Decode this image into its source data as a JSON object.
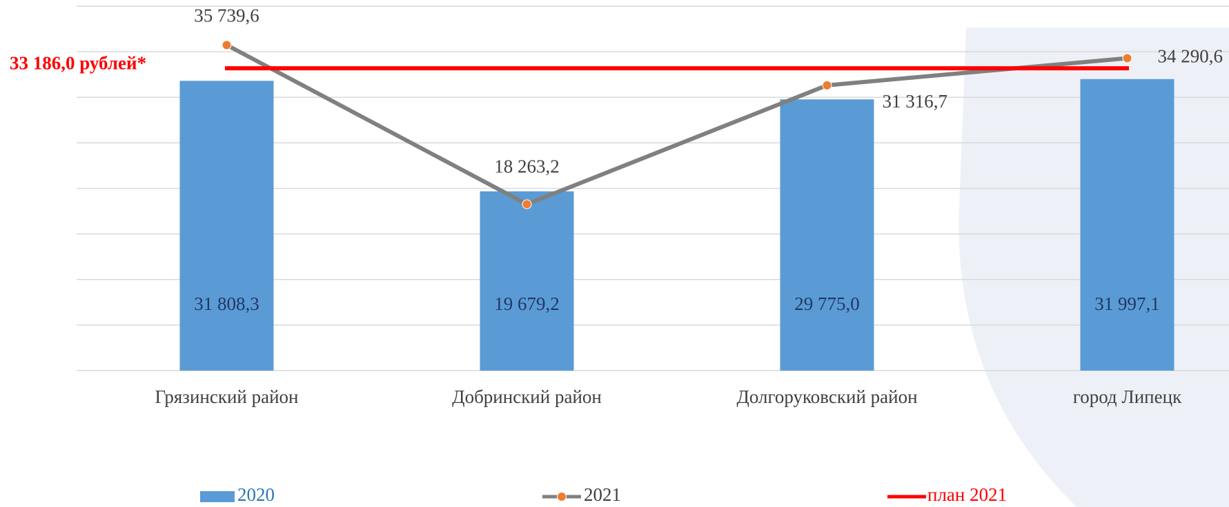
{
  "chart_data": {
    "type": "bar_line",
    "categories": [
      "Грязинский район",
      "Добринский район",
      "Долгоруковский район",
      "город Липецк"
    ],
    "series": [
      {
        "name": "2020",
        "type": "bar",
        "color": "#5b9bd5",
        "values": [
          31808.3,
          19679.2,
          29775.0,
          31997.1
        ],
        "value_labels": [
          "31 808,3",
          "19 679,2",
          "29 775,0",
          "31 997,1"
        ]
      },
      {
        "name": "2021",
        "type": "line",
        "color": "#808080",
        "marker_color": "#ed7d31",
        "values": [
          35739.6,
          18263.2,
          31316.7,
          34290.6
        ],
        "value_labels": [
          "35 739,6",
          "18 263,2",
          "31 316,7",
          "34 290,6"
        ]
      },
      {
        "name": "план 2021",
        "type": "hline",
        "color": "#ff0000",
        "value": 33186.0,
        "value_label": "33 186,0 рублей*"
      }
    ],
    "ylim": [
      0,
      40000
    ],
    "yticks": [
      0,
      5000,
      10000,
      15000,
      20000,
      25000,
      30000,
      35000,
      40000
    ],
    "grid": true
  }
}
